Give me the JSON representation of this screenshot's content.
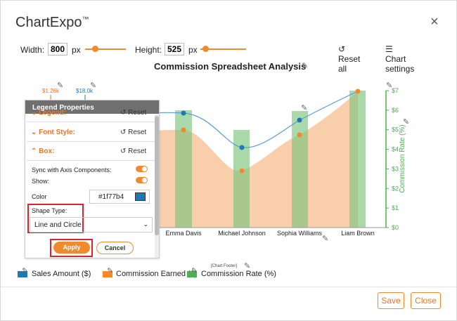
{
  "app": {
    "title": "ChartExpo",
    "tm": "™"
  },
  "toolbar": {
    "width_label": "Width:",
    "width_value": "800",
    "width_unit": "px",
    "height_label": "Height:",
    "height_value": "525",
    "height_unit": "px",
    "reset_all": "Reset all",
    "chart_settings": "Chart settings"
  },
  "chart_title": "Commission Spreadsheet Analysis",
  "chart_data": {
    "type": "bar",
    "categories": [
      "",
      "Emma Davis",
      "Michael Johnson",
      "Sophia Williams",
      "Liam Brown"
    ],
    "series": [
      {
        "name": "Sales Amount ($)",
        "kind": "line",
        "values": [
          null,
          17.0,
          14.0,
          15.8,
          18.0
        ]
      },
      {
        "name": "Commission Earned ($)",
        "kind": "area",
        "values": [
          null,
          1.22,
          1.04,
          1.15,
          1.26
        ]
      },
      {
        "name": "Commission Rate (%)",
        "kind": "bar",
        "values": [
          null,
          5.0,
          4.2,
          5.1,
          6.1
        ]
      }
    ],
    "y2label": "Commission Rate (%)",
    "y2_ticks": [
      "$0",
      "$1",
      "$2",
      "$3",
      "$4",
      "$5",
      "$6",
      "$7"
    ],
    "y2lim": [
      0,
      7
    ],
    "top_labels": [
      "$1.26k",
      "$18.0k"
    ]
  },
  "legend_items": [
    "Sales Amount ($)",
    "Commission Earned ($)",
    "Commission Rate (%)"
  ],
  "chart_footer": "[Chart Footer]",
  "colors": {
    "accent": "#f08a2c",
    "sales": "#1f77b4",
    "commission": "#f7be8f",
    "rate": "#7cc47c",
    "rate_axis": "#4caf50"
  },
  "panel": {
    "title": "Legend Properties",
    "legend_label": "Legend:",
    "font_style": "Font Style:",
    "box": "Box:",
    "reset": "Reset",
    "sync_label": "Sync with Axis Components:",
    "show_label": "Show:",
    "color_label": "Color",
    "color_value": "#1f77b4",
    "shape_type_label": "Shape Type:",
    "shape_type_value": "Line and Circle",
    "apply": "Apply",
    "cancel": "Cancel"
  },
  "buttons": {
    "save": "Save",
    "close": "Close"
  }
}
